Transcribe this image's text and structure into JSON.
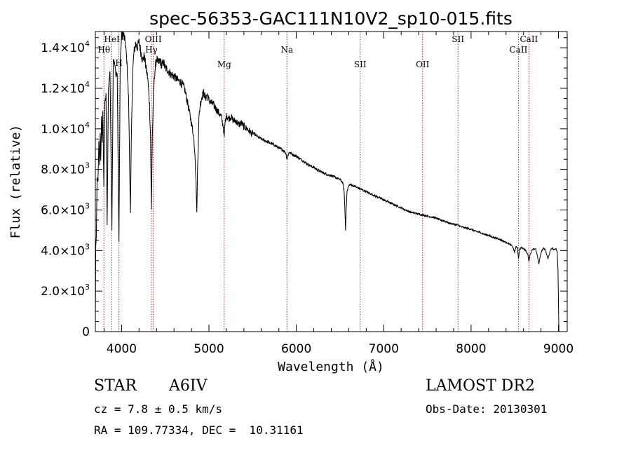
{
  "chart_data": {
    "type": "line",
    "title": "spec-56353-GAC111N10V2_sp10-015.fits",
    "xlabel": "Wavelength (Å)",
    "ylabel": "Flux (relative)",
    "xlim": [
      3700,
      9100
    ],
    "ylim": [
      0,
      14800
    ],
    "x_ticks": [
      {
        "value": 4000,
        "label": "4000"
      },
      {
        "value": 5000,
        "label": "5000"
      },
      {
        "value": 6000,
        "label": "6000"
      },
      {
        "value": 7000,
        "label": "7000"
      },
      {
        "value": 8000,
        "label": "8000"
      },
      {
        "value": 9000,
        "label": "9000"
      }
    ],
    "y_ticks": [
      {
        "value": 0,
        "mant": "0",
        "exp": ""
      },
      {
        "value": 2000,
        "mant": "2.0×10",
        "exp": "3"
      },
      {
        "value": 4000,
        "mant": "4.0×10",
        "exp": "3"
      },
      {
        "value": 6000,
        "mant": "6.0×10",
        "exp": "3"
      },
      {
        "value": 8000,
        "mant": "8.0×10",
        "exp": "3"
      },
      {
        "value": 10000,
        "mant": "1.0×10",
        "exp": "4"
      },
      {
        "value": 12000,
        "mant": "1.2×10",
        "exp": "4"
      },
      {
        "value": 14000,
        "mant": "1.4×10",
        "exp": "4"
      }
    ],
    "line_color": "#000000",
    "marker_color": "#b03030",
    "spectral_lines": [
      {
        "label": "Hθ",
        "wavelength": 3798,
        "level": 1
      },
      {
        "label": "HeI",
        "wavelength": 3889,
        "level": 0
      },
      {
        "label": "H",
        "wavelength": 3970,
        "level": 2
      },
      {
        "label": "OIII",
        "wavelength": 4363,
        "level": 0
      },
      {
        "label": "Hγ",
        "wavelength": 4341,
        "level": 1
      },
      {
        "label": "Mg",
        "wavelength": 5175,
        "level": 3
      },
      {
        "label": "Na",
        "wavelength": 5893,
        "level": 1
      },
      {
        "label": "SII",
        "wavelength": 6731,
        "level": 3
      },
      {
        "label": "OII",
        "wavelength": 7445,
        "level": 3
      },
      {
        "label": "SII",
        "wavelength": 7850,
        "level": 0
      },
      {
        "label": "CaII",
        "wavelength": 8542,
        "level": 1
      },
      {
        "label": "CaII",
        "wavelength": 8662,
        "level": 0
      }
    ],
    "series": [
      {
        "points": [
          [
            3700,
            400
          ],
          [
            3705,
            4200
          ],
          [
            3712,
            4800
          ],
          [
            3720,
            7600
          ],
          [
            3730,
            7400
          ],
          [
            3740,
            9400
          ],
          [
            3748,
            8200
          ],
          [
            3755,
            9800
          ],
          [
            3762,
            8400
          ],
          [
            3770,
            10500
          ],
          [
            3778,
            9400
          ],
          [
            3786,
            10800
          ],
          [
            3797,
            7200
          ],
          [
            3808,
            11200
          ],
          [
            3822,
            11700
          ],
          [
            3835,
            5200
          ],
          [
            3850,
            12100
          ],
          [
            3868,
            12800
          ],
          [
            3889,
            5000
          ],
          [
            3905,
            13400
          ],
          [
            3920,
            13300
          ],
          [
            3935,
            12700
          ],
          [
            3950,
            12800
          ],
          [
            3970,
            4400
          ],
          [
            3985,
            13400
          ],
          [
            4000,
            14500
          ],
          [
            4020,
            14700
          ],
          [
            4040,
            14300
          ],
          [
            4060,
            13400
          ],
          [
            4080,
            11500
          ],
          [
            4090,
            9000
          ],
          [
            4101,
            5800
          ],
          [
            4112,
            9500
          ],
          [
            4125,
            12600
          ],
          [
            4140,
            13700
          ],
          [
            4160,
            14200
          ],
          [
            4180,
            14000
          ],
          [
            4200,
            14300
          ],
          [
            4220,
            13800
          ],
          [
            4240,
            13400
          ],
          [
            4260,
            13600
          ],
          [
            4280,
            13000
          ],
          [
            4300,
            12500
          ],
          [
            4320,
            11200
          ],
          [
            4332,
            9500
          ],
          [
            4341,
            6000
          ],
          [
            4352,
            9600
          ],
          [
            4365,
            11700
          ],
          [
            4380,
            12800
          ],
          [
            4400,
            13500
          ],
          [
            4420,
            13200
          ],
          [
            4440,
            13400
          ],
          [
            4460,
            13100
          ],
          [
            4480,
            13300
          ],
          [
            4500,
            13000
          ],
          [
            4530,
            12900
          ],
          [
            4560,
            12700
          ],
          [
            4600,
            12600
          ],
          [
            4640,
            12400
          ],
          [
            4680,
            12300
          ],
          [
            4720,
            12000
          ],
          [
            4760,
            11200
          ],
          [
            4790,
            10500
          ],
          [
            4820,
            9800
          ],
          [
            4840,
            8800
          ],
          [
            4855,
            7000
          ],
          [
            4861,
            5800
          ],
          [
            4870,
            8000
          ],
          [
            4885,
            10500
          ],
          [
            4900,
            11200
          ],
          [
            4920,
            11600
          ],
          [
            4940,
            11800
          ],
          [
            4960,
            11500
          ],
          [
            4980,
            11700
          ],
          [
            5000,
            11400
          ],
          [
            5020,
            11300
          ],
          [
            5050,
            11200
          ],
          [
            5080,
            11000
          ],
          [
            5110,
            10800
          ],
          [
            5140,
            10600
          ],
          [
            5165,
            10100
          ],
          [
            5175,
            9600
          ],
          [
            5185,
            10300
          ],
          [
            5200,
            10700
          ],
          [
            5220,
            10500
          ],
          [
            5250,
            10600
          ],
          [
            5280,
            10400
          ],
          [
            5310,
            10400
          ],
          [
            5340,
            10200
          ],
          [
            5370,
            10300
          ],
          [
            5400,
            10100
          ],
          [
            5440,
            10000
          ],
          [
            5480,
            9800
          ],
          [
            5520,
            9750
          ],
          [
            5560,
            9600
          ],
          [
            5600,
            9500
          ],
          [
            5650,
            9400
          ],
          [
            5700,
            9300
          ],
          [
            5750,
            9200
          ],
          [
            5800,
            9050
          ],
          [
            5850,
            8950
          ],
          [
            5880,
            8800
          ],
          [
            5893,
            8500
          ],
          [
            5905,
            8700
          ],
          [
            5920,
            8850
          ],
          [
            5950,
            8750
          ],
          [
            6000,
            8650
          ],
          [
            6050,
            8500
          ],
          [
            6100,
            8350
          ],
          [
            6150,
            8200
          ],
          [
            6200,
            8100
          ],
          [
            6250,
            7950
          ],
          [
            6300,
            7850
          ],
          [
            6350,
            7750
          ],
          [
            6400,
            7700
          ],
          [
            6450,
            7600
          ],
          [
            6500,
            7500
          ],
          [
            6530,
            7350
          ],
          [
            6545,
            7000
          ],
          [
            6555,
            6200
          ],
          [
            6563,
            5000
          ],
          [
            6570,
            6000
          ],
          [
            6580,
            6900
          ],
          [
            6595,
            7150
          ],
          [
            6610,
            7250
          ],
          [
            6650,
            7200
          ],
          [
            6700,
            7100
          ],
          [
            6750,
            7000
          ],
          [
            6800,
            6900
          ],
          [
            6850,
            6800
          ],
          [
            6900,
            6700
          ],
          [
            6950,
            6600
          ],
          [
            7000,
            6500
          ],
          [
            7050,
            6400
          ],
          [
            7100,
            6300
          ],
          [
            7150,
            6200
          ],
          [
            7200,
            6100
          ],
          [
            7250,
            6000
          ],
          [
            7300,
            5900
          ],
          [
            7350,
            5850
          ],
          [
            7400,
            5800
          ],
          [
            7450,
            5750
          ],
          [
            7500,
            5700
          ],
          [
            7550,
            5650
          ],
          [
            7600,
            5600
          ],
          [
            7650,
            5500
          ],
          [
            7700,
            5450
          ],
          [
            7750,
            5350
          ],
          [
            7800,
            5300
          ],
          [
            7850,
            5250
          ],
          [
            7900,
            5150
          ],
          [
            7950,
            5100
          ],
          [
            8000,
            5050
          ],
          [
            8050,
            4950
          ],
          [
            8100,
            4900
          ],
          [
            8150,
            4800
          ],
          [
            8200,
            4750
          ],
          [
            8250,
            4650
          ],
          [
            8300,
            4600
          ],
          [
            8350,
            4500
          ],
          [
            8400,
            4400
          ],
          [
            8450,
            4300
          ],
          [
            8480,
            4150
          ],
          [
            8498,
            3900
          ],
          [
            8515,
            4200
          ],
          [
            8530,
            4150
          ],
          [
            8542,
            3600
          ],
          [
            8555,
            4050
          ],
          [
            8575,
            4150
          ],
          [
            8600,
            4100
          ],
          [
            8625,
            4000
          ],
          [
            8650,
            3800
          ],
          [
            8662,
            3450
          ],
          [
            8675,
            3800
          ],
          [
            8700,
            4050
          ],
          [
            8720,
            4100
          ],
          [
            8740,
            4050
          ],
          [
            8760,
            3700
          ],
          [
            8775,
            3350
          ],
          [
            8790,
            3700
          ],
          [
            8810,
            4000
          ],
          [
            8830,
            4100
          ],
          [
            8850,
            4050
          ],
          [
            8865,
            3800
          ],
          [
            8880,
            3600
          ],
          [
            8895,
            3800
          ],
          [
            8910,
            4050
          ],
          [
            8930,
            4100
          ],
          [
            8950,
            4050
          ],
          [
            8970,
            4100
          ],
          [
            8985,
            3950
          ],
          [
            8995,
            3000
          ],
          [
            9000,
            1500
          ],
          [
            9005,
            0
          ]
        ]
      }
    ]
  },
  "info": {
    "object_class": "STAR",
    "subclass": "A6IV",
    "cz": "cz = 7.8 ± 0.5 km/s",
    "coords": "RA = 109.77334, DEC =  10.31161",
    "survey": "LAMOST DR2",
    "obs_date": "Obs-Date: 20130301"
  }
}
